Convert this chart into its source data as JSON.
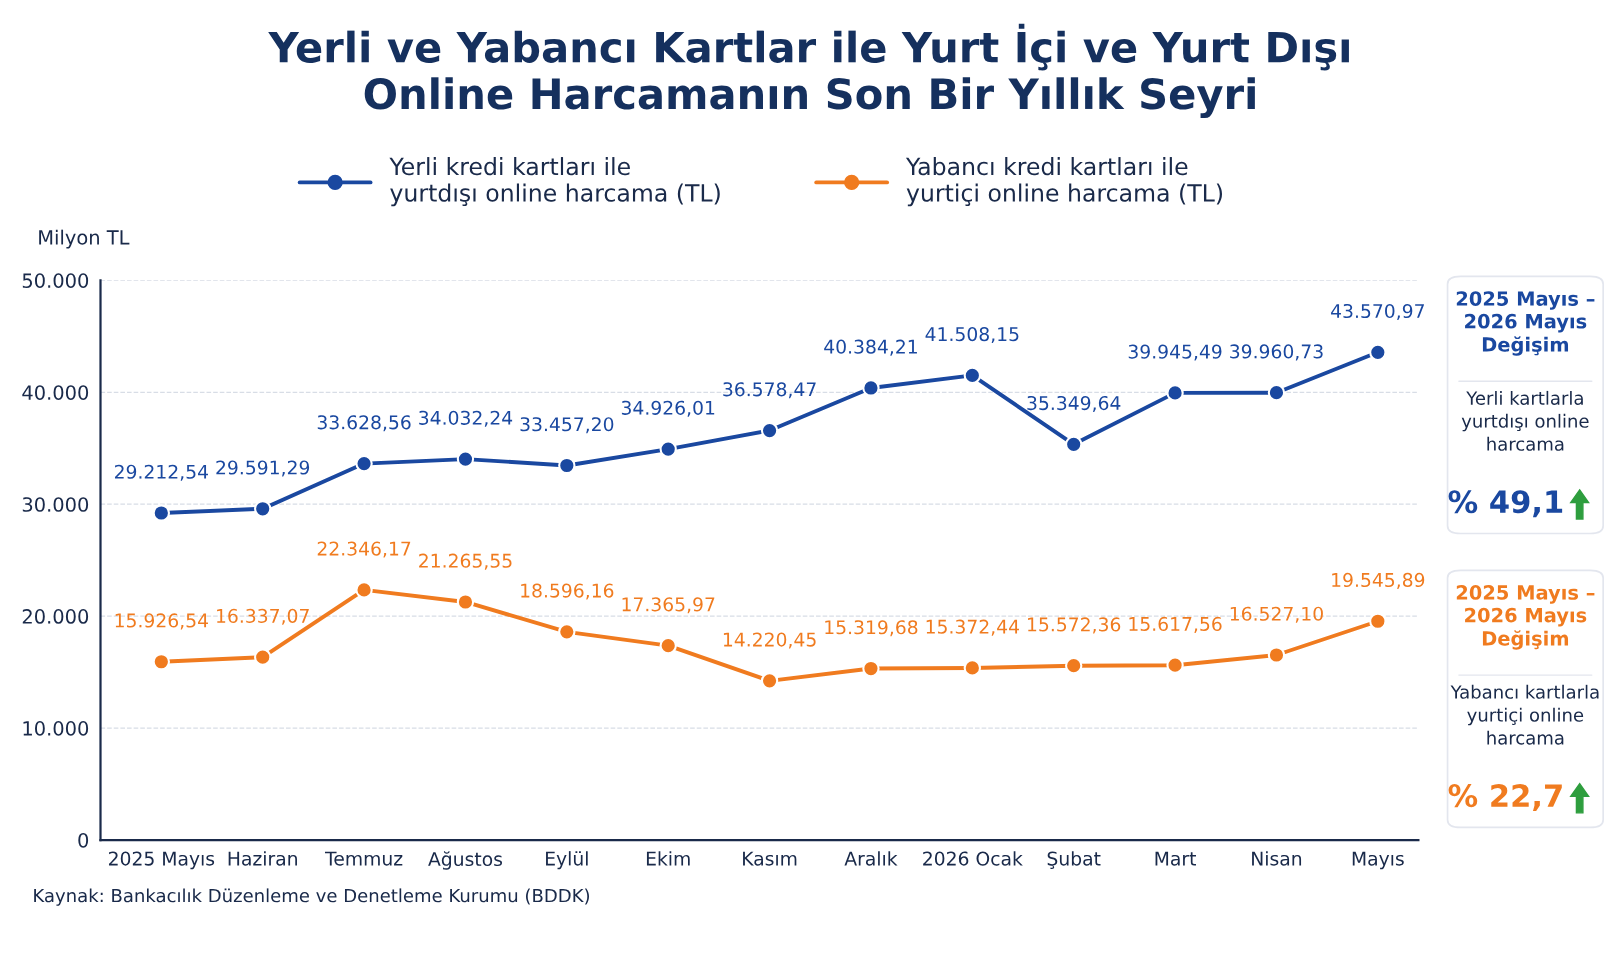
{
  "chart_data": {
    "type": "line",
    "title": "Yerli ve Yabancı Kartlar ile Yurt İçi ve Yurt Dışı\nOnline Harcamanın Son Bir Yıllık Seyri",
    "ylabel": "Milyon TL",
    "categories": [
      "2025 Mayıs",
      "Haziran",
      "Temmuz",
      "Ağustos",
      "Eylül",
      "Ekim",
      "Kasım",
      "Aralık",
      "2026 Ocak",
      "Şubat",
      "Mart",
      "Nisan",
      "Mayıs"
    ],
    "series": [
      {
        "name": "Yerli kredi kartları ile\nyurtdışı online harcama (TL)",
        "color": "#1a48a0",
        "values": [
          29212.54,
          29591.29,
          33628.56,
          34032.24,
          33457.2,
          34926.01,
          36578.47,
          40384.21,
          41508.15,
          35349.64,
          39945.49,
          39960.73,
          43570.97
        ],
        "value_labels": [
          "29.212,54",
          "29.591,29",
          "33.628,56",
          "34.032,24",
          "33.457,20",
          "34.926,01",
          "36.578,47",
          "40.384,21",
          "41.508,15",
          "35.349,64",
          "39.945,49",
          "39.960,73",
          "43.570,97"
        ]
      },
      {
        "name": "Yabancı kredi kartları ile\nyurtiçi online harcama (TL)",
        "color": "#f07b1f",
        "values": [
          15926.54,
          16337.07,
          22346.17,
          21265.55,
          18596.16,
          17365.97,
          14220.45,
          15319.68,
          15372.44,
          15572.36,
          15617.56,
          16527.1,
          19545.89
        ],
        "value_labels": [
          "15.926,54",
          "16.337,07",
          "22.346,17",
          "21.265,55",
          "18.596,16",
          "17.365,97",
          "14.220,45",
          "15.319,68",
          "15.372,44",
          "15.572,36",
          "15.617,56",
          "16.527,10",
          "19.545,89"
        ]
      }
    ],
    "ylim": [
      0,
      50000
    ],
    "yticks": [
      0,
      {
        "value": 10000,
        "label": "10.000"
      },
      {
        "value": 20000,
        "label": "20.000"
      },
      {
        "value": 30000,
        "label": "30.000"
      },
      {
        "value": 40000,
        "label": "40.000"
      },
      {
        "value": 50000,
        "label": "50.000"
      }
    ],
    "grid": "y",
    "legend": "top",
    "marker": "circle",
    "line_style": "solid",
    "annotations": [
      "Kaynak: Bankacılık Düzenleme ve Denetleme Kurumu (BDDK)",
      "2025 Mayıs –\n2026 Mayıs\nDeğişim",
      "Yerli kartlarla\nyurtdışı online\nharcama",
      "% 49,1",
      "2025 Mayıs –\n2026 Mayıs\nDeğişim",
      "Yabancı kartlarla\nyurtiçi online\nharcama",
      "% 22,7"
    ]
  }
}
